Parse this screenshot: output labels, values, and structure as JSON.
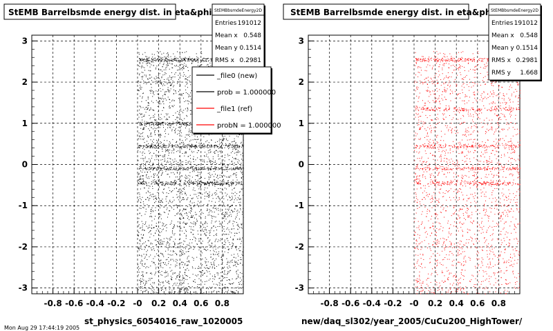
{
  "footer_text": "Mon Aug 29 17:44:19 2005",
  "chart_data": [
    {
      "type": "scatter",
      "title": "StEMB Barrelbsmde energy dist. in eta&phi",
      "xlabel": "st_physics_6054016_raw_1020005",
      "ylabel": "",
      "xlim": [
        -1,
        1
      ],
      "ylim": [
        -3.14,
        3.14
      ],
      "x_ticks": [
        -0.8,
        -0.6,
        -0.4,
        -0.2,
        0,
        0.2,
        0.4,
        0.6,
        0.8
      ],
      "x_tick_labels": [
        "-0.8",
        "-0.6",
        "-0.4",
        "-0.2",
        "-0",
        "0.2",
        "0.4",
        "0.6",
        "0.8"
      ],
      "y_ticks": [
        -3,
        -2,
        -1,
        0,
        1,
        2,
        3
      ],
      "y_tick_labels": [
        "-3",
        "-2",
        "-1",
        "0",
        "1",
        "2",
        "3"
      ],
      "grid": true,
      "marker_color": "#000000",
      "series": [
        {
          "x_range": [
            0,
            1
          ],
          "y_range": [
            -3.14,
            2.75
          ],
          "description_dense_bands_y": [
            0.45,
            -0.1,
            -0.45,
            1.0,
            2.55
          ]
        }
      ],
      "stats": {
        "header": "StEMBbsmdeEnergy2D",
        "rows": [
          {
            "label": "Entries",
            "value": "191012"
          },
          {
            "label": "Mean x",
            "value": "0.548"
          },
          {
            "label": "Mean y",
            "value": "0.1514"
          },
          {
            "label": "RMS x",
            "value": "0.2981"
          }
        ]
      },
      "legend": {
        "position": "top-right",
        "entries": [
          {
            "label": "_file0 (new)",
            "color": "#000000"
          },
          {
            "label": "prob = 1.000000",
            "color": "#000000"
          },
          {
            "label": "_file1 (ref)",
            "color": "#ff0000"
          },
          {
            "label": "probN = 1.000000",
            "color": "#ff0000"
          }
        ]
      }
    },
    {
      "type": "scatter",
      "title": "StEMB Barrelbsmde energy dist. in eta&phi",
      "xlabel": "new/daq_sl302/year_2005/CuCu200_HighTower/",
      "ylabel": "",
      "xlim": [
        -1,
        1
      ],
      "ylim": [
        -3.14,
        3.14
      ],
      "x_ticks": [
        -0.8,
        -0.6,
        -0.4,
        -0.2,
        0,
        0.2,
        0.4,
        0.6,
        0.8
      ],
      "x_tick_labels": [
        "-0.8",
        "-0.6",
        "-0.4",
        "-0.2",
        "-0",
        "0.2",
        "0.4",
        "0.6",
        "0.8"
      ],
      "y_ticks": [
        -3,
        -2,
        -1,
        0,
        1,
        2,
        3
      ],
      "y_tick_labels": [
        "-3",
        "-2",
        "-1",
        "0",
        "1",
        "2",
        "3"
      ],
      "grid": true,
      "marker_color": "#ff0000",
      "series": [
        {
          "x_range": [
            0,
            1
          ],
          "y_range": [
            -3.14,
            2.75
          ],
          "description_dense_bands_y": [
            0.45,
            -0.1,
            -0.45,
            1.35,
            2.55
          ]
        }
      ],
      "stats": {
        "header": "StEMBbsmdeEnergy2D",
        "rows": [
          {
            "label": "Entries",
            "value": "191012"
          },
          {
            "label": "Mean x",
            "value": "0.548"
          },
          {
            "label": "Mean y",
            "value": "0.1514"
          },
          {
            "label": "RMS x",
            "value": "0.2981"
          },
          {
            "label": "RMS y",
            "value": "1.668"
          }
        ]
      }
    }
  ]
}
